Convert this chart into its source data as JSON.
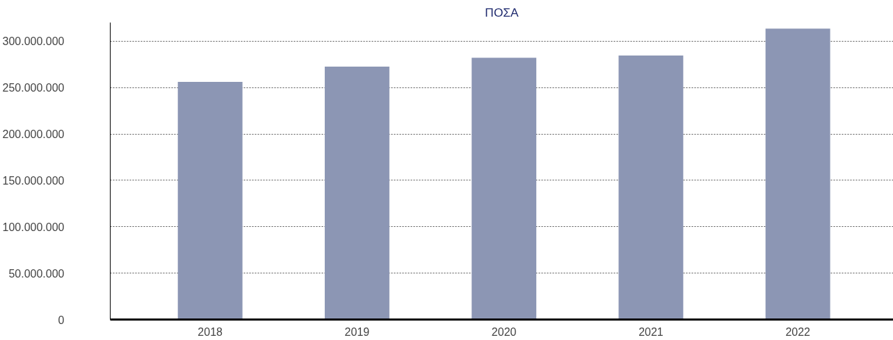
{
  "chart_data": {
    "type": "bar",
    "title": "ΠΟΣΑ",
    "categories": [
      "2018",
      "2019",
      "2020",
      "2021",
      "2022"
    ],
    "values": [
      256000000,
      272500000,
      282000000,
      284500000,
      313500000
    ],
    "color": "#8c96b4",
    "ylim": [
      0,
      320000000
    ],
    "yticks": [
      {
        "value": 0,
        "label": "0"
      },
      {
        "value": 50000000,
        "label": "50.000.000"
      },
      {
        "value": 100000000,
        "label": "100.000.000"
      },
      {
        "value": 150000000,
        "label": "150.000.000"
      },
      {
        "value": 200000000,
        "label": "200.000.000"
      },
      {
        "value": 250000000,
        "label": "250.000.000"
      },
      {
        "value": 300000000,
        "label": "300.000.000"
      }
    ],
    "grid": "y"
  }
}
